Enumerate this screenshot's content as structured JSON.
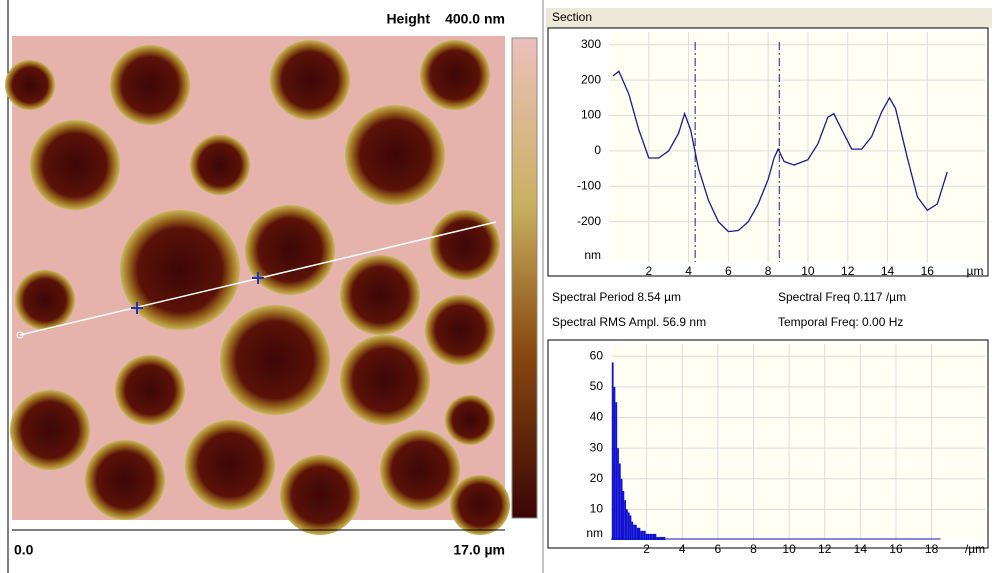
{
  "image": {
    "title": "Height",
    "scale_max": "400.0 nm",
    "x_start": "0.0",
    "x_end": "17.0 µm"
  },
  "section": {
    "title": "Section",
    "type": "line",
    "color": "#1a1a8c",
    "xlim": [
      0,
      18.9
    ],
    "ylim": [
      -314,
      336
    ],
    "yticks": [
      300,
      200,
      100,
      0,
      -100,
      -200
    ],
    "xticks": [
      2,
      4,
      6,
      8,
      10,
      12,
      14,
      16
    ],
    "y_unit": "nm",
    "x_unit": "µm",
    "cursors": [
      4.33,
      8.56
    ],
    "x": [
      0.2,
      0.5,
      1,
      1.5,
      2,
      2.5,
      3,
      3.5,
      3.8,
      4.1,
      4.5,
      5,
      5.5,
      6,
      6.5,
      7,
      7.5,
      8,
      8.3,
      8.5,
      8.8,
      9.3,
      10,
      10.5,
      11,
      11.3,
      11.7,
      12.2,
      12.7,
      13.2,
      13.7,
      14.1,
      14.4,
      15,
      15.5,
      16,
      16.5,
      17
    ],
    "values": [
      212,
      225,
      160,
      60,
      -20,
      -20,
      0,
      50,
      105,
      60,
      -50,
      -140,
      -200,
      -228,
      -225,
      -200,
      -150,
      -80,
      -20,
      5,
      -30,
      -40,
      -25,
      20,
      95,
      105,
      60,
      5,
      5,
      40,
      110,
      150,
      120,
      -20,
      -130,
      -168,
      -150,
      -60
    ]
  },
  "stats": [
    "Spectral Period 8.54 µm",
    "Spectral RMS Ampl. 56.9 nm",
    "Spectral Freq 0.117 /µm",
    "Temporal Freq: 0.00 Hz"
  ],
  "spectrum": {
    "type": "bar",
    "color": "#1010d0",
    "xlim": [
      0,
      21
    ],
    "ylim": [
      0,
      64
    ],
    "yticks": [
      60,
      50,
      40,
      30,
      20,
      10
    ],
    "xticks": [
      2,
      4,
      6,
      8,
      10,
      12,
      14,
      16,
      18
    ],
    "y_unit": "nm",
    "x_unit": "/µm",
    "x": [
      0.1,
      0.2,
      0.3,
      0.4,
      0.5,
      0.6,
      0.7,
      0.8,
      0.9,
      1,
      1.1,
      1.2,
      1.3,
      1.4,
      1.5,
      1.6,
      1.7,
      1.8,
      1.9,
      2,
      2.1,
      2.2,
      2.3,
      2.4,
      2.5,
      2.6,
      2.7,
      2.8,
      2.9,
      3
    ],
    "values": [
      58,
      50,
      45,
      30,
      25,
      20,
      16,
      13,
      10,
      9,
      8,
      6,
      5,
      5,
      4,
      4,
      3,
      3,
      3,
      2,
      2,
      2,
      2,
      2,
      2,
      1,
      1,
      1,
      1,
      1
    ]
  }
}
